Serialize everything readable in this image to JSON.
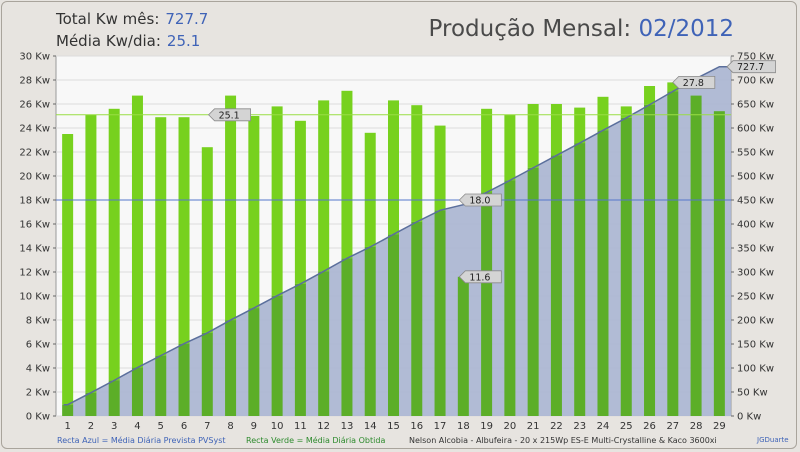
{
  "header": {
    "total_label": "Total Kw mês:",
    "total_value": "727.7",
    "media_label": "Média Kw/dia:",
    "media_value": "25.1",
    "title_prefix": "Produção Mensal:",
    "title_period": "02/2012"
  },
  "footer": {
    "blue_line_legend": "Recta Azul = Média Diária Prevista PVSyst",
    "green_line_legend": "Recta Verde = Média Diária Obtida",
    "installation": "Nelson Alcobia - Albufeira - 20 x 215Wp ES-E Multi-Crystalline & Kaco 3600xi",
    "author": "JGDuarte"
  },
  "colors": {
    "bar": "#77d11e",
    "bar_overlap": "#5cae28",
    "area_fill": "#a8b4d0",
    "area_line": "#5b6f9c",
    "blue_line": "#5577cc",
    "green_line": "#99dd44",
    "plot_bg": "#f8f8f8"
  },
  "chart_data": {
    "type": "bar",
    "categories": [
      "1",
      "2",
      "3",
      "4",
      "5",
      "6",
      "7",
      "8",
      "9",
      "10",
      "11",
      "12",
      "13",
      "14",
      "15",
      "16",
      "17",
      "18",
      "19",
      "20",
      "21",
      "22",
      "23",
      "24",
      "25",
      "26",
      "27",
      "28",
      "29"
    ],
    "series": [
      {
        "axis": "left",
        "values": [
          23.5,
          25.1,
          25.6,
          26.7,
          24.9,
          24.9,
          22.4,
          26.7,
          25.0,
          25.8,
          24.6,
          26.3,
          27.1,
          23.6,
          26.3,
          25.9,
          24.2,
          11.6,
          25.6,
          25.1,
          26.0,
          26.0,
          25.7,
          26.6,
          25.8,
          27.5,
          27.8,
          26.7,
          25.4
        ]
      },
      {
        "axis": "right",
        "type": "area",
        "values": [
          23.5,
          48.6,
          74.2,
          100.9,
          125.8,
          150.7,
          173.1,
          199.8,
          224.8,
          250.6,
          275.2,
          301.5,
          328.6,
          352.2,
          378.5,
          404.4,
          428.6,
          440.2,
          465.8,
          490.9,
          516.9,
          542.9,
          568.6,
          595.2,
          621.0,
          648.5,
          676.3,
          703.0,
          727.7
        ]
      }
    ],
    "reference_lines": [
      {
        "axis": "left",
        "value": 18.0,
        "label": "18.0",
        "color": "blue"
      },
      {
        "axis": "left",
        "value": 25.1,
        "label": "25.1",
        "color": "green"
      }
    ],
    "point_labels": [
      {
        "category": "18",
        "value": 11.6,
        "label": "11.6"
      },
      {
        "category": "27",
        "value": 27.8,
        "label": "27.8"
      },
      {
        "category": "29",
        "value": 727.7,
        "label": "727.7",
        "axis": "right"
      }
    ],
    "left_ticks": [
      "0 Kw",
      "2 Kw",
      "4 Kw",
      "6 Kw",
      "8 Kw",
      "10 Kw",
      "12 Kw",
      "14 Kw",
      "16 Kw",
      "18 Kw",
      "20 Kw",
      "22 Kw",
      "24 Kw",
      "26 Kw",
      "28 Kw",
      "30 Kw"
    ],
    "right_ticks": [
      "0 Kw",
      "50 Kw",
      "100 Kw",
      "150 Kw",
      "200 Kw",
      "250 Kw",
      "300 Kw",
      "350 Kw",
      "400 Kw",
      "450 Kw",
      "500 Kw",
      "550 Kw",
      "600 Kw",
      "650 Kw",
      "700 Kw",
      "750 Kw"
    ],
    "ylim_left": [
      0,
      30
    ],
    "ylim_right": [
      0,
      750
    ],
    "grid": true
  }
}
